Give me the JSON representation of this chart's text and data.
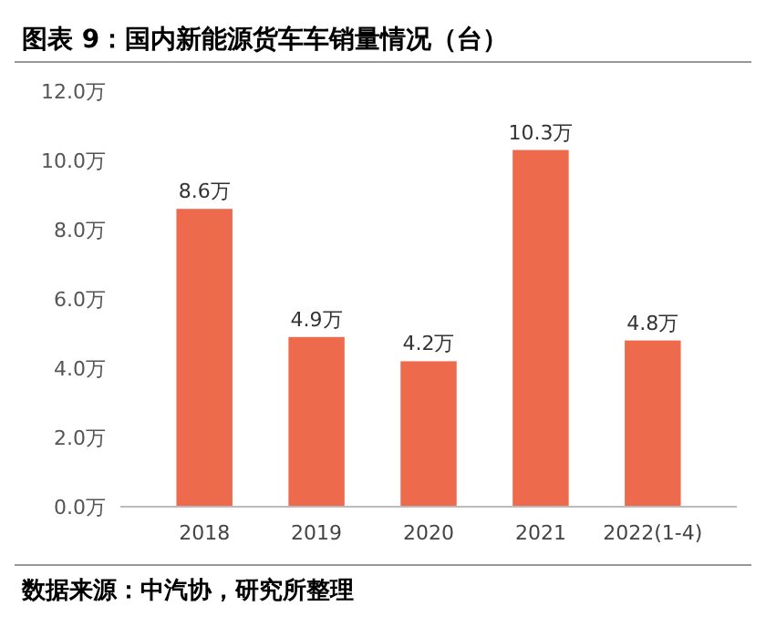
{
  "chart_data": {
    "type": "bar",
    "title": "图表 9：国内新能源货车车销量情况（台）",
    "categories": [
      "2018",
      "2019",
      "2020",
      "2021",
      "2022(1-4)"
    ],
    "values": [
      8.6,
      4.9,
      4.2,
      10.3,
      4.8
    ],
    "color": "#ed6a4c",
    "value_labels": [
      "8.6万",
      "4.9万",
      "4.2万",
      "10.3万",
      "4.8万"
    ],
    "ylim": [
      0,
      12
    ],
    "yticks": [
      {
        "value": 0,
        "label": "0.0万"
      },
      {
        "value": 2,
        "label": "2.0万"
      },
      {
        "value": 4,
        "label": "4.0万"
      },
      {
        "value": 6,
        "label": "6.0万"
      },
      {
        "value": 8,
        "label": "8.0万"
      },
      {
        "value": 10,
        "label": "10.0万"
      },
      {
        "value": 12,
        "label": "12.0万"
      }
    ],
    "grid": false,
    "annotations": [
      "数据来源：中汽协，研究所整理"
    ]
  }
}
